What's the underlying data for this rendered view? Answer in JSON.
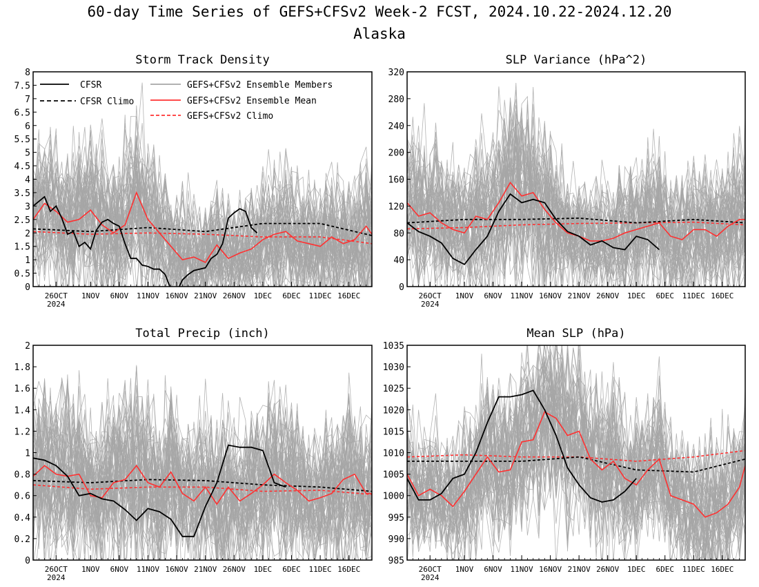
{
  "figure": {
    "title": "60-day Time Series of GEFS+CFSv2 Week-2 FCST, 2024.10.22-2024.12.20",
    "subtitle": "Alaska"
  },
  "legend": {
    "cfsr": "CFSR",
    "cfsr_climo": "CFSR Climo",
    "members": "GEFS+CFSv2 Ensemble Members",
    "mean": "GEFS+CFSv2 Ensemble Mean",
    "climo": "GEFS+CFSv2 Climo",
    "placement": "top-left, inside Storm Track Density panel"
  },
  "colors": {
    "cfsr": "#000000",
    "members": "#a6a6a6",
    "mean": "#ff3030",
    "climo": "#ff3030",
    "cfsr_climo": "#000000"
  },
  "x_axis": {
    "start_date": "2024-10-22",
    "end_date": "2024-12-20",
    "tick_days": [
      4,
      10,
      15,
      20,
      25,
      30,
      35,
      40,
      45,
      50,
      55
    ],
    "tick_labels": [
      "26OCT",
      "1NOV",
      "6NOV",
      "11NOV",
      "16NOV",
      "21NOV",
      "26NOV",
      "1DEC",
      "6DEC",
      "11DEC",
      "16DEC"
    ],
    "year_label": "2024"
  },
  "chart_data": [
    {
      "type": "line",
      "title": "Storm Track Density",
      "ylim": [
        0,
        8
      ],
      "yticks": [
        0,
        0.5,
        1,
        1.5,
        2,
        2.5,
        3,
        3.5,
        4,
        4.5,
        5,
        5.5,
        6,
        6.5,
        7,
        7.5,
        8
      ],
      "ytick_labels": [
        "0",
        "0.5",
        "1",
        "1.5",
        "2",
        "2.5",
        "3",
        "3.5",
        "4",
        "4.5",
        "5",
        "5.5",
        "6",
        "6.5",
        "7",
        "7.5",
        "8"
      ],
      "ensemble_mean_x": [
        0,
        2,
        4,
        6,
        8,
        10,
        12,
        14,
        16,
        18,
        20,
        22,
        24,
        26,
        28,
        30,
        32,
        34,
        36,
        38,
        40,
        42,
        44,
        46,
        48,
        50,
        52,
        54,
        56,
        58,
        59
      ],
      "ensemble_mean": [
        2.5,
        3.1,
        2.8,
        2.4,
        2.5,
        2.85,
        2.3,
        2.0,
        2.3,
        3.5,
        2.5,
        2.0,
        1.5,
        1.0,
        1.1,
        0.9,
        1.55,
        1.05,
        1.25,
        1.4,
        1.75,
        1.95,
        2.05,
        1.7,
        1.6,
        1.5,
        1.85,
        1.6,
        1.75,
        2.25,
        1.95
      ],
      "ensemble_spread": [
        1.1,
        1.35,
        1.3,
        1.25,
        1.3,
        1.45,
        1.4,
        1.3,
        1.35,
        1.65,
        1.45,
        1.3,
        1.15,
        1.0,
        1.0,
        0.95,
        1.1,
        1.0,
        1.05,
        1.1,
        1.2,
        1.25,
        1.3,
        1.2,
        1.15,
        1.1,
        1.2,
        1.15,
        1.2,
        1.35,
        1.3
      ],
      "cfsr_x": [
        0,
        2,
        3,
        4,
        5,
        6,
        7,
        8,
        9,
        10,
        11,
        12,
        13,
        14,
        15,
        16,
        17,
        18,
        19,
        20,
        21,
        22,
        23,
        24,
        25,
        26,
        27,
        28,
        29,
        30,
        31,
        32,
        33,
        34,
        35,
        36,
        37,
        38,
        39,
        40,
        41,
        42,
        43,
        44
      ],
      "cfsr": [
        3.0,
        3.35,
        2.8,
        3.0,
        2.55,
        1.95,
        2.05,
        1.5,
        1.65,
        1.4,
        2.1,
        2.4,
        2.5,
        2.35,
        2.25,
        1.6,
        1.05,
        1.05,
        0.8,
        0.75,
        0.65,
        0.65,
        0.45,
        -0.1,
        -0.2,
        0.25,
        0.45,
        0.6,
        0.65,
        0.7,
        1.05,
        1.2,
        1.6,
        2.55,
        2.75,
        2.9,
        2.8,
        2.2,
        2.0,
        -9,
        -9,
        -9,
        -9,
        -9
      ],
      "climo_x": [
        0,
        10,
        20,
        30,
        40,
        50,
        59
      ],
      "cfsr_climo": [
        2.15,
        2.05,
        2.2,
        2.05,
        2.35,
        2.35,
        1.9
      ],
      "ens_climo": [
        2.05,
        1.95,
        2.0,
        1.95,
        1.85,
        1.85,
        1.6
      ]
    },
    {
      "type": "line",
      "title": "SLP Variance (hPa^2)",
      "ylim": [
        0,
        320
      ],
      "yticks": [
        0,
        40,
        80,
        120,
        160,
        200,
        240,
        280,
        320
      ],
      "ytick_labels": [
        "0",
        "40",
        "80",
        "120",
        "160",
        "200",
        "240",
        "280",
        "320"
      ],
      "ensemble_mean_x": [
        0,
        2,
        4,
        6,
        8,
        10,
        12,
        14,
        16,
        18,
        20,
        22,
        24,
        26,
        28,
        30,
        32,
        34,
        36,
        38,
        40,
        42,
        44,
        46,
        48,
        50,
        52,
        54,
        56,
        58,
        59
      ],
      "ensemble_mean": [
        125,
        105,
        110,
        95,
        85,
        80,
        105,
        100,
        125,
        155,
        135,
        140,
        115,
        95,
        80,
        75,
        68,
        68,
        72,
        80,
        85,
        90,
        95,
        75,
        70,
        85,
        85,
        75,
        90,
        100,
        100
      ],
      "ensemble_spread": [
        50,
        55,
        55,
        50,
        48,
        45,
        55,
        55,
        65,
        75,
        68,
        70,
        60,
        50,
        45,
        42,
        40,
        40,
        42,
        45,
        48,
        50,
        52,
        45,
        42,
        48,
        48,
        45,
        50,
        55,
        55
      ],
      "cfsr_x": [
        0,
        2,
        4,
        6,
        8,
        10,
        12,
        14,
        16,
        18,
        20,
        22,
        24,
        26,
        28,
        30,
        32,
        34,
        36,
        38,
        40,
        42,
        44
      ],
      "cfsr": [
        95,
        82,
        75,
        65,
        42,
        33,
        55,
        75,
        112,
        138,
        125,
        130,
        125,
        100,
        82,
        75,
        62,
        68,
        58,
        55,
        75,
        70,
        55
      ],
      "climo_x": [
        0,
        10,
        20,
        30,
        40,
        50,
        59
      ],
      "cfsr_climo": [
        95,
        100,
        100,
        102,
        95,
        100,
        95
      ],
      "ens_climo": [
        86,
        88,
        92,
        94,
        95,
        96,
        92
      ]
    },
    {
      "type": "line",
      "title": "Total Precip (inch)",
      "ylim": [
        0,
        2
      ],
      "yticks": [
        0,
        0.2,
        0.4,
        0.6,
        0.8,
        1,
        1.2,
        1.4,
        1.6,
        1.8,
        2
      ],
      "ytick_labels": [
        "0",
        "0.2",
        "0.4",
        "0.6",
        "0.8",
        "1",
        "1.2",
        "1.4",
        "1.6",
        "1.8",
        "2"
      ],
      "ensemble_mean_x": [
        0,
        2,
        4,
        6,
        8,
        10,
        12,
        14,
        16,
        18,
        20,
        22,
        24,
        26,
        28,
        30,
        32,
        34,
        36,
        38,
        40,
        42,
        44,
        46,
        48,
        50,
        52,
        54,
        56,
        58,
        59
      ],
      "ensemble_mean": [
        0.78,
        0.88,
        0.8,
        0.78,
        0.8,
        0.6,
        0.58,
        0.72,
        0.75,
        0.88,
        0.72,
        0.68,
        0.82,
        0.62,
        0.55,
        0.68,
        0.52,
        0.68,
        0.55,
        0.62,
        0.7,
        0.8,
        0.72,
        0.65,
        0.55,
        0.58,
        0.62,
        0.75,
        0.8,
        0.62,
        0.62
      ],
      "ensemble_spread": [
        0.4,
        0.42,
        0.4,
        0.4,
        0.4,
        0.35,
        0.35,
        0.38,
        0.4,
        0.42,
        0.38,
        0.36,
        0.4,
        0.35,
        0.33,
        0.36,
        0.32,
        0.36,
        0.34,
        0.35,
        0.38,
        0.4,
        0.38,
        0.36,
        0.33,
        0.34,
        0.35,
        0.38,
        0.4,
        0.36,
        0.36
      ],
      "cfsr_x": [
        0,
        2,
        4,
        6,
        8,
        10,
        12,
        14,
        16,
        18,
        20,
        22,
        24,
        26,
        28,
        30,
        32,
        34,
        36,
        38,
        40,
        42,
        44
      ],
      "cfsr": [
        0.95,
        0.93,
        0.88,
        0.78,
        0.6,
        0.62,
        0.57,
        0.55,
        0.47,
        0.37,
        0.48,
        0.45,
        0.38,
        0.22,
        0.22,
        0.5,
        0.72,
        1.07,
        1.05,
        1.05,
        1.02,
        0.72,
        0.68
      ],
      "climo_x": [
        0,
        10,
        20,
        30,
        40,
        50,
        59
      ],
      "cfsr_climo": [
        0.74,
        0.72,
        0.75,
        0.74,
        0.7,
        0.68,
        0.64
      ],
      "ens_climo": [
        0.7,
        0.66,
        0.68,
        0.68,
        0.64,
        0.65,
        0.61
      ]
    },
    {
      "type": "line",
      "title": "Mean SLP (hPa)",
      "ylim": [
        985,
        1035
      ],
      "yticks": [
        985,
        990,
        995,
        1000,
        1005,
        1010,
        1015,
        1020,
        1025,
        1030,
        1035
      ],
      "ytick_labels": [
        "985",
        "990",
        "995",
        "1000",
        "1005",
        "1010",
        "1015",
        "1020",
        "1025",
        "1030",
        "1035"
      ],
      "ensemble_mean_x": [
        0,
        2,
        4,
        6,
        8,
        10,
        12,
        14,
        16,
        18,
        20,
        22,
        24,
        26,
        28,
        30,
        32,
        34,
        36,
        38,
        40,
        42,
        44,
        46,
        48,
        50,
        52,
        54,
        56,
        58,
        59
      ],
      "ensemble_mean": [
        1005,
        1000,
        1001.5,
        1000,
        997.5,
        1001,
        1005,
        1009,
        1005.5,
        1006,
        1012.5,
        1013,
        1019.5,
        1018,
        1014,
        1015,
        1008.5,
        1006,
        1008,
        1004,
        1002.5,
        1006,
        1008.5,
        1000,
        999,
        998,
        995,
        996,
        998,
        1002,
        1007
      ],
      "ensemble_spread": [
        7,
        7,
        7,
        7,
        7,
        8,
        8,
        9,
        9,
        9,
        10,
        10,
        11,
        11,
        10,
        10,
        9,
        9,
        9,
        8,
        8,
        8,
        8,
        8,
        8,
        8,
        8,
        8,
        8,
        8,
        8
      ],
      "cfsr_x": [
        0,
        2,
        4,
        6,
        8,
        10,
        12,
        14,
        16,
        18,
        20,
        22,
        24,
        26,
        28,
        30,
        32,
        34,
        36,
        38,
        40,
        42,
        44
      ],
      "cfsr": [
        1004,
        999,
        999,
        1000.5,
        1004,
        1005,
        1010,
        1017,
        1023,
        1023,
        1023.5,
        1024.5,
        1020,
        1014,
        1006.5,
        1002.5,
        999.5,
        998.5,
        999,
        1001,
        1004,
        -9,
        -9
      ],
      "climo_x": [
        0,
        10,
        20,
        30,
        40,
        50,
        59
      ],
      "cfsr_climo": [
        1008,
        1008,
        1008,
        1009,
        1006,
        1005.5,
        1008.5
      ],
      "ens_climo": [
        1009,
        1009.5,
        1009,
        1009,
        1008,
        1009,
        1010.5
      ]
    }
  ]
}
